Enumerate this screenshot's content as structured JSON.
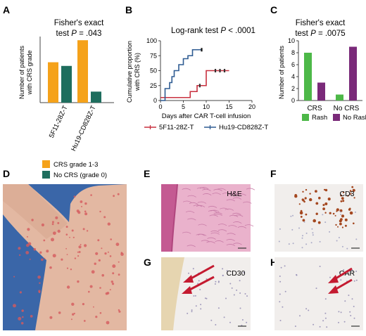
{
  "panel_labels": {
    "a": "A",
    "b": "B",
    "c": "C",
    "d": "D",
    "e": "E",
    "f": "F",
    "g": "G",
    "h": "H"
  },
  "colors": {
    "orange": "#f5a21a",
    "teal": "#1e6e5e",
    "red": "#c8303f",
    "blue": "#2e5b92",
    "green": "#4db848",
    "purple": "#7a2a79",
    "photo_bg": "#3a66a8",
    "he_pink": "#e8a8c6",
    "ihc_bg": "#f1eeec",
    "arrow": "#c41a30"
  },
  "chart_data": [
    {
      "type": "bar",
      "panel": "A",
      "title_line1": "Fisher's exact",
      "title_line2_prefix": "test ",
      "title_p": "P",
      "title_value": " = .043",
      "ylabel_line1": "Number of patients",
      "ylabel_line2": "with CRS grade",
      "categories": [
        "5F11-28Z-T",
        "Hu19-CD828Z-T"
      ],
      "series": [
        {
          "name": "CRS grade 1-3",
          "values": [
            11,
            17
          ]
        },
        {
          "name": "No CRS (grade 0)",
          "values": [
            10,
            3
          ]
        }
      ],
      "ylim": [
        0,
        18
      ],
      "legend_position": "bottom"
    },
    {
      "type": "line",
      "panel": "B",
      "step": true,
      "title_prefix": "Log-rank test ",
      "title_p": "P",
      "title_value": " < .0001",
      "xlabel": "Days after CAR T-cell infusion",
      "ylabel_line1": "Cumulative proportion",
      "ylabel_line2": "with CRS (%)",
      "xlim": [
        0,
        20
      ],
      "ylim": [
        0,
        100
      ],
      "xticks": [
        "0",
        "5",
        "10",
        "15",
        "20"
      ],
      "yticks": [
        "0",
        "25",
        "50",
        "75",
        "100"
      ],
      "series": [
        {
          "name": "5F11-28Z-T",
          "steps": [
            [
              0,
              5
            ],
            [
              6.5,
              5
            ],
            [
              6.5,
              15
            ],
            [
              8,
              15
            ],
            [
              8,
              25
            ],
            [
              10,
              25
            ],
            [
              10,
              50
            ],
            [
              15,
              50
            ]
          ],
          "censor_x": [
            8.6,
            12,
            13,
            14
          ]
        },
        {
          "name": "Hu19-CD828Z-T",
          "steps": [
            [
              0,
              0
            ],
            [
              1,
              0
            ],
            [
              1,
              20
            ],
            [
              2,
              20
            ],
            [
              2,
              30
            ],
            [
              2.5,
              30
            ],
            [
              2.5,
              40
            ],
            [
              3,
              40
            ],
            [
              3,
              50
            ],
            [
              4,
              50
            ],
            [
              4,
              60
            ],
            [
              5,
              60
            ],
            [
              5,
              70
            ],
            [
              6,
              70
            ],
            [
              6,
              75
            ],
            [
              7,
              75
            ],
            [
              7,
              85
            ],
            [
              9,
              85
            ]
          ],
          "censor_x": [
            9
          ]
        }
      ],
      "legend_position": "bottom"
    },
    {
      "type": "bar",
      "panel": "C",
      "title_line1": "Fisher's exact",
      "title_line2_prefix": "test ",
      "title_p": "P",
      "title_value": " = .0075",
      "ylabel": "Number of patients",
      "categories": [
        "CRS",
        "No CRS"
      ],
      "yticks": [
        "0",
        "2",
        "4",
        "6",
        "8",
        "10"
      ],
      "series": [
        {
          "name": "Rash",
          "values": [
            8,
            1
          ]
        },
        {
          "name": "No Rash",
          "values": [
            3,
            9
          ]
        }
      ],
      "ylim": [
        0,
        10
      ],
      "legend_position": "bottom"
    }
  ],
  "histology_labels": {
    "e": "H&E",
    "f": "CD3",
    "g": "CD30",
    "h": "CAR"
  }
}
